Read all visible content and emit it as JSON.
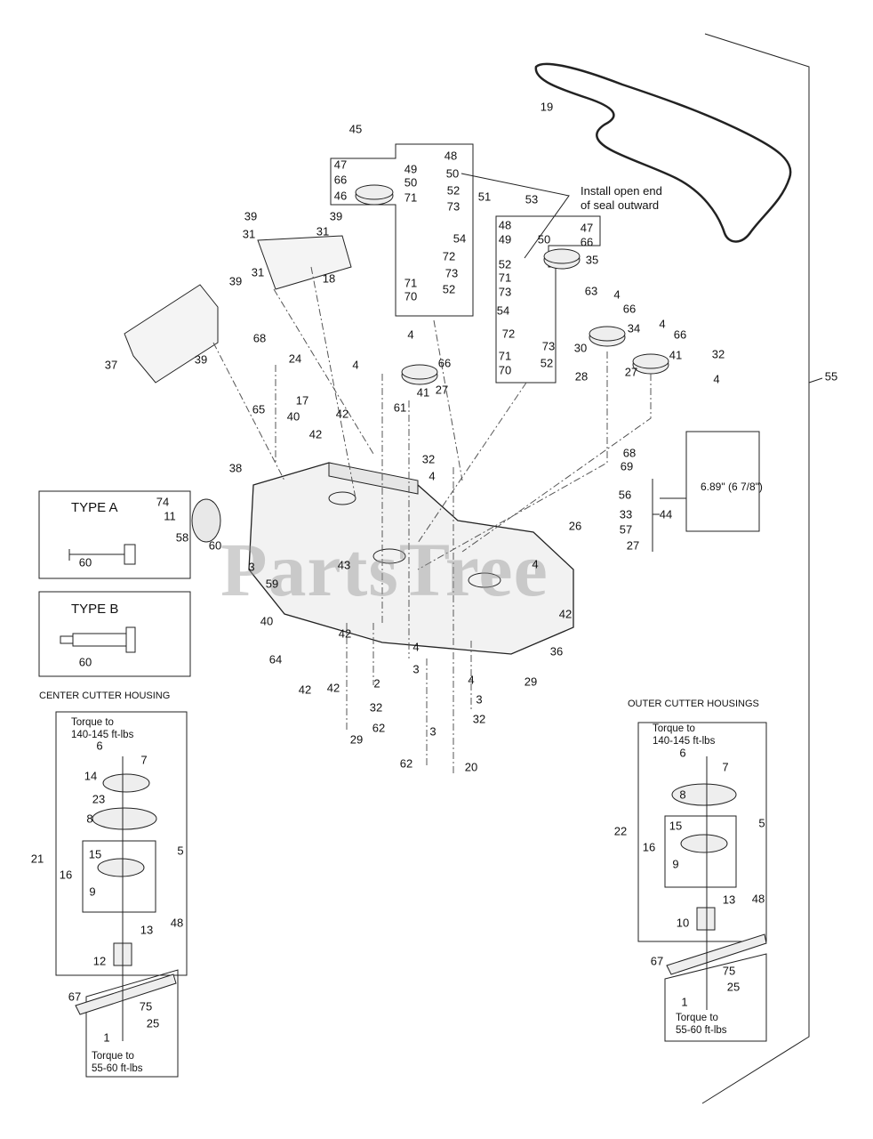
{
  "watermark": "PartsTree",
  "notes": {
    "install_seal_line1": "Install open end",
    "install_seal_line2": "of seal outward",
    "dimension": "6.89\" (6 7/8\")",
    "type_a": "TYPE A",
    "type_a_part": "60",
    "type_b": "TYPE B",
    "type_b_part": "60",
    "center_header": "CENTER CUTTER HOUSING",
    "outer_header": "OUTER CUTTER HOUSINGS",
    "center_torque_top_1": "Torque to",
    "center_torque_top_2": "140-145 ft-lbs",
    "center_torque_bottom_1": "Torque to",
    "center_torque_bottom_2": "55-60 ft-lbs",
    "outer_torque_top_1": "Torque to",
    "outer_torque_top_2": "140-145 ft-lbs",
    "outer_torque_bottom_1": "Torque to",
    "outer_torque_bottom_2": "55-60 ft-lbs"
  },
  "callouts": [
    "19",
    "45",
    "47",
    "66",
    "46",
    "48",
    "49",
    "50",
    "50",
    "71",
    "52",
    "73",
    "51",
    "54",
    "72",
    "71",
    "73",
    "52",
    "70",
    "39",
    "31",
    "39",
    "31",
    "31",
    "39",
    "18",
    "37",
    "39",
    "53",
    "48",
    "49",
    "50",
    "47",
    "66",
    "35",
    "52",
    "71",
    "73",
    "63",
    "54",
    "72",
    "73",
    "71",
    "52",
    "70",
    "4",
    "66",
    "34",
    "30",
    "28",
    "4",
    "66",
    "41",
    "32",
    "27",
    "4",
    "68",
    "24",
    "65",
    "4",
    "17",
    "40",
    "42",
    "42",
    "61",
    "4",
    "66",
    "41",
    "27",
    "32",
    "4",
    "55",
    "68",
    "69",
    "56",
    "33",
    "57",
    "26",
    "27",
    "44",
    "38",
    "74",
    "11",
    "58",
    "60",
    "3",
    "59",
    "43",
    "40",
    "42",
    "64",
    "42",
    "42",
    "29",
    "4",
    "42",
    "36",
    "29",
    "4",
    "3",
    "32",
    "2",
    "4",
    "3",
    "32",
    "62",
    "3",
    "62",
    "20",
    "6",
    "7",
    "14",
    "23",
    "8",
    "21",
    "15",
    "5",
    "16",
    "9",
    "48",
    "13",
    "12",
    "67",
    "75",
    "25",
    "1",
    "6",
    "7",
    "8",
    "22",
    "15",
    "5",
    "16",
    "9",
    "48",
    "13",
    "10",
    "67",
    "75",
    "25",
    "1"
  ]
}
